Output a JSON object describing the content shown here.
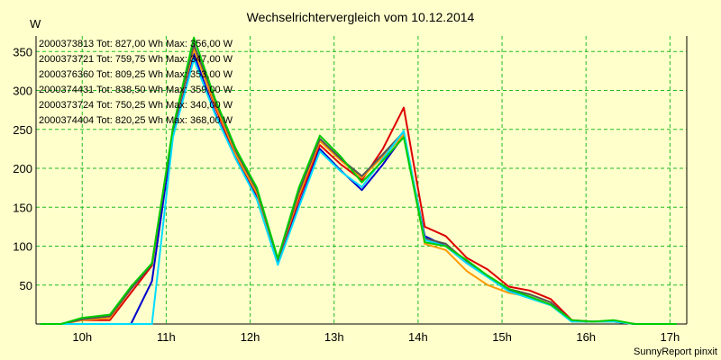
{
  "chart_data": {
    "type": "line",
    "title": "Wechselrichtervergleich vom 10.12.2014",
    "ylabel": "W",
    "xlabel": "",
    "ylim": [
      0,
      370
    ],
    "xlim": [
      9.45,
      17.2
    ],
    "grid": true,
    "legend_position": "top-left",
    "x_ticks": [
      10,
      11,
      12,
      13,
      14,
      15,
      16,
      17
    ],
    "x_tick_labels": [
      "10h",
      "11h",
      "12h",
      "13h",
      "14h",
      "15h",
      "16h",
      "17h"
    ],
    "y_ticks": [
      50,
      100,
      150,
      200,
      250,
      300,
      350
    ],
    "y_tick_labels": [
      "50",
      "100",
      "150",
      "200",
      "250",
      "300",
      "350"
    ],
    "x": [
      9.5,
      9.75,
      10.0,
      10.33,
      10.58,
      10.83,
      11.08,
      11.33,
      11.58,
      11.83,
      12.08,
      12.33,
      12.58,
      12.83,
      13.08,
      13.33,
      13.58,
      13.83,
      14.08,
      14.33,
      14.58,
      14.83,
      15.08,
      15.33,
      15.58,
      15.83,
      16.08,
      16.33,
      16.58,
      16.83,
      17.08
    ],
    "series": [
      {
        "name": "2000373813",
        "legend": "2000373813 Tot: 827,00 Wh Max: 356,00 W",
        "color": "#dd0000",
        "values": [
          0,
          0,
          5,
          5,
          40,
          75,
          248,
          356,
          280,
          215,
          165,
          80,
          160,
          230,
          205,
          185,
          225,
          278,
          125,
          113,
          85,
          70,
          48,
          43,
          32,
          5,
          3,
          3,
          0,
          0,
          0
        ]
      },
      {
        "name": "2000373721",
        "legend": "2000373721 Tot: 759,75 Wh Max: 347,00 W",
        "color": "#0000cc",
        "values": [
          0,
          0,
          0,
          0,
          0,
          55,
          245,
          347,
          272,
          212,
          162,
          77,
          152,
          225,
          197,
          172,
          205,
          242,
          113,
          100,
          78,
          62,
          43,
          35,
          25,
          3,
          3,
          3,
          0,
          0,
          0
        ]
      },
      {
        "name": "2000376360",
        "legend": "2000376360 Tot: 809,25 Wh Max: 353,00 W",
        "color": "#ff9900",
        "values": [
          0,
          0,
          5,
          8,
          45,
          78,
          250,
          353,
          283,
          218,
          168,
          82,
          165,
          235,
          210,
          188,
          215,
          243,
          103,
          95,
          68,
          50,
          40,
          35,
          25,
          3,
          3,
          3,
          0,
          0,
          0
        ]
      },
      {
        "name": "2000374431",
        "legend": "2000374431 Tot: 838,50 Wh Max: 359,00 W",
        "color": "#555555",
        "values": [
          0,
          0,
          6,
          10,
          45,
          77,
          250,
          359,
          288,
          222,
          172,
          82,
          170,
          238,
          212,
          190,
          218,
          247,
          110,
          103,
          80,
          62,
          45,
          38,
          28,
          4,
          3,
          4,
          0,
          0,
          0
        ]
      },
      {
        "name": "2000373724",
        "legend": "2000373724 Tot: 750,25 Wh Max: 340,00 W",
        "color": "#00ddff",
        "values": [
          0,
          0,
          0,
          0,
          0,
          0,
          240,
          340,
          270,
          212,
          160,
          76,
          150,
          222,
          196,
          176,
          212,
          248,
          108,
          100,
          78,
          60,
          42,
          33,
          24,
          3,
          3,
          3,
          0,
          0,
          0
        ]
      },
      {
        "name": "2000374404",
        "legend": "2000374404 Tot: 820,25 Wh Max: 368,00 W",
        "color": "#00cc00",
        "values": [
          0,
          0,
          8,
          12,
          48,
          78,
          252,
          368,
          290,
          225,
          175,
          84,
          175,
          242,
          215,
          182,
          210,
          240,
          105,
          100,
          82,
          62,
          45,
          35,
          25,
          5,
          3,
          5,
          0,
          0,
          0
        ]
      }
    ]
  },
  "footer": {
    "credit": "SunnyReport pinxit"
  },
  "colors": {
    "background": "#ffffcc",
    "grid": "#22bb22",
    "axis": "#000000"
  }
}
